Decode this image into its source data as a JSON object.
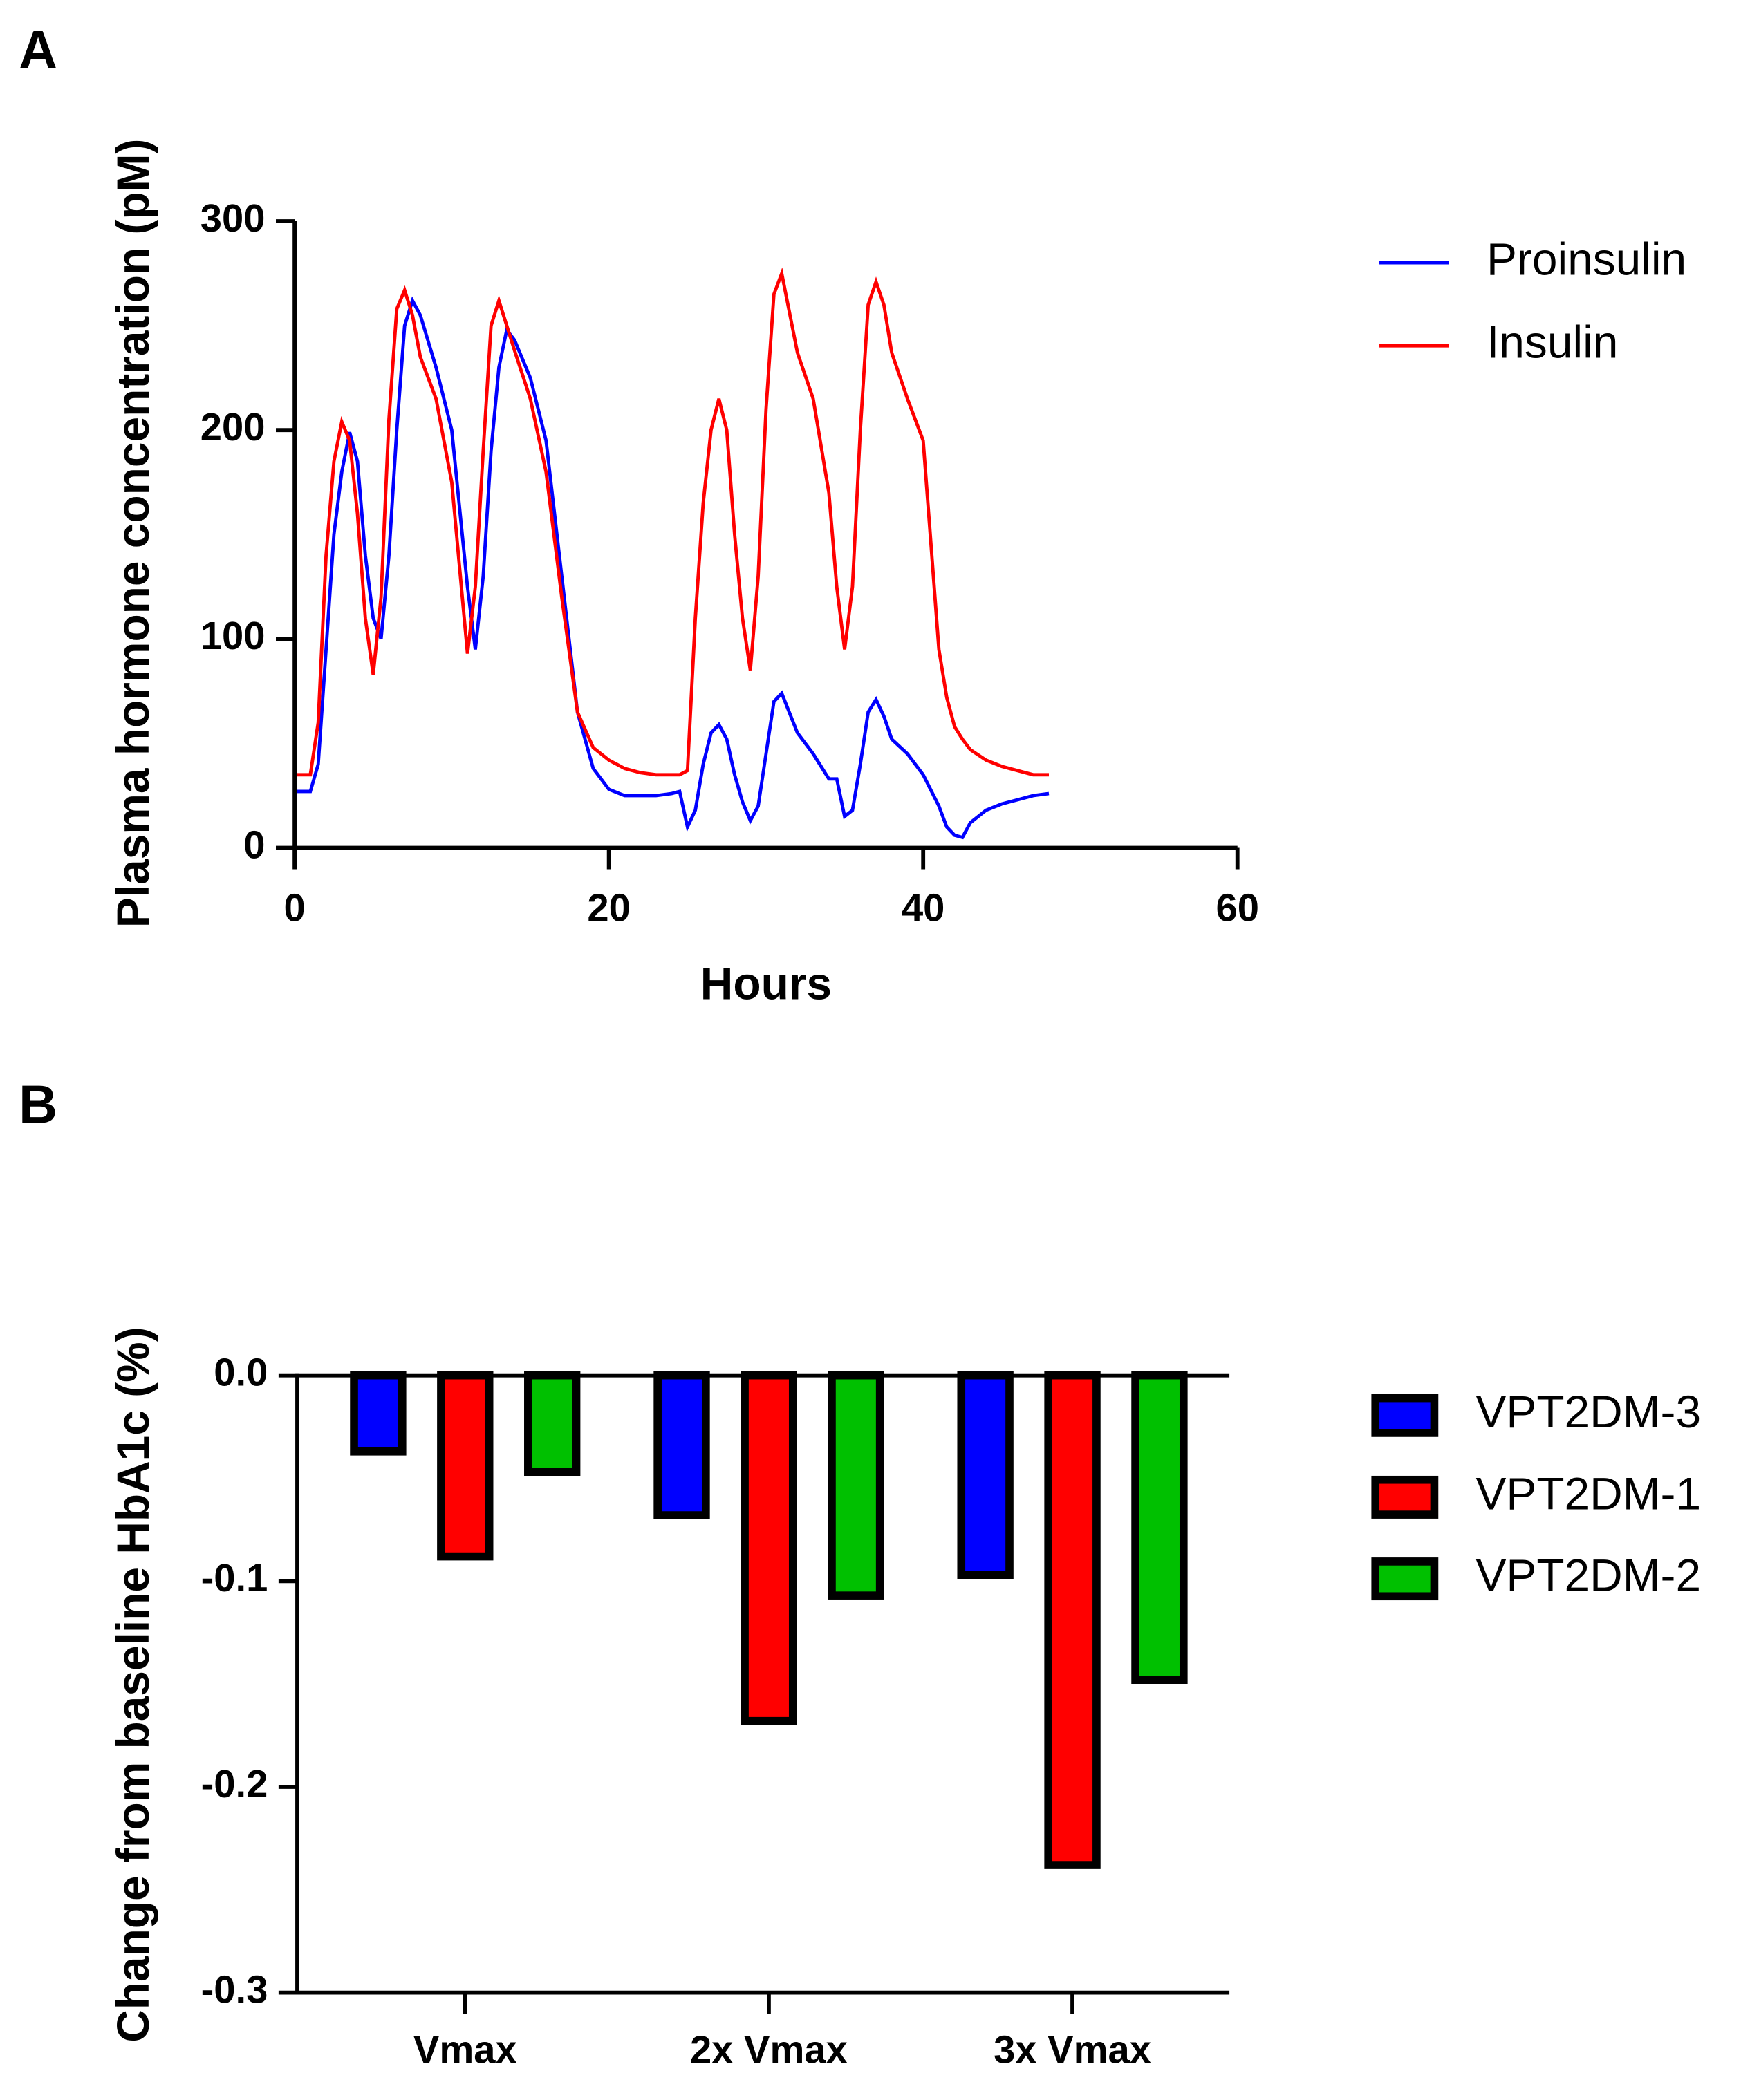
{
  "chart_data": [
    {
      "type": "line",
      "panel": "A",
      "x_label": "Hours",
      "y_label": "Plasma hormone concentration (pM)",
      "xlim": [
        0,
        60
      ],
      "xticks": [
        0,
        20,
        40,
        60
      ],
      "ylim": [
        0,
        300
      ],
      "yticks": [
        0,
        100,
        200,
        300
      ],
      "x": [
        0,
        1,
        1.5,
        2,
        2.5,
        3,
        3.5,
        4,
        4.5,
        5,
        5.5,
        6,
        6.5,
        7,
        7.5,
        8,
        9,
        10,
        11,
        11.5,
        12,
        12.5,
        13,
        13.5,
        14,
        15,
        16,
        17,
        18,
        19,
        20,
        21,
        22,
        23,
        24,
        24.5,
        25,
        25.5,
        26,
        26.5,
        27,
        27.5,
        28,
        28.5,
        29,
        29.5,
        30,
        30.5,
        31,
        32,
        33,
        34,
        34.5,
        35,
        35.5,
        36,
        36.5,
        37,
        37.5,
        38,
        39,
        40,
        41,
        41.5,
        42,
        42.5,
        43,
        44,
        45,
        46,
        47,
        48
      ],
      "series": [
        {
          "name": "Proinsulin",
          "color": "#0000ff",
          "values": [
            27,
            27,
            40,
            95,
            150,
            180,
            199,
            185,
            140,
            110,
            100,
            140,
            200,
            250,
            262,
            255,
            230,
            200,
            125,
            95,
            130,
            190,
            230,
            248,
            243,
            225,
            195,
            130,
            65,
            38,
            28,
            25,
            25,
            25,
            26,
            27,
            10,
            18,
            40,
            55,
            59,
            52,
            35,
            22,
            13,
            20,
            45,
            70,
            74,
            55,
            45,
            33,
            33,
            15,
            18,
            40,
            65,
            71,
            63,
            52,
            45,
            35,
            20,
            10,
            6,
            5,
            12,
            18,
            21,
            23,
            25,
            26
          ]
        },
        {
          "name": "Insulin",
          "color": "#ff0000",
          "values": [
            35,
            35,
            60,
            140,
            185,
            204,
            195,
            160,
            110,
            83,
            120,
            205,
            258,
            267,
            255,
            235,
            215,
            175,
            93,
            125,
            190,
            250,
            262,
            250,
            238,
            215,
            180,
            120,
            65,
            48,
            42,
            38,
            36,
            35,
            35,
            35,
            37,
            110,
            165,
            200,
            215,
            200,
            150,
            110,
            85,
            130,
            210,
            265,
            275,
            237,
            215,
            170,
            125,
            95,
            125,
            200,
            260,
            271,
            260,
            237,
            215,
            195,
            95,
            72,
            58,
            52,
            47,
            42,
            39,
            37,
            35,
            35
          ]
        }
      ]
    },
    {
      "type": "bar",
      "panel": "B",
      "y_label": "Change from baseline HbA1c (%)",
      "categories": [
        "Vmax",
        "2x Vmax",
        "3x Vmax"
      ],
      "ylim": [
        -0.3,
        0
      ],
      "yticks": [
        {
          "value": 0,
          "label": "0.0"
        },
        -0.1,
        -0.2,
        -0.3
      ],
      "series": [
        {
          "name": "VPT2DM-3",
          "color": "#0000ff",
          "values": [
            -0.037,
            -0.068,
            -0.097
          ]
        },
        {
          "name": "VPT2DM-1",
          "color": "#ff0000",
          "values": [
            -0.088,
            -0.168,
            -0.238
          ]
        },
        {
          "name": "VPT2DM-2",
          "color": "#00c000",
          "values": [
            -0.047,
            -0.107,
            -0.148
          ]
        }
      ]
    }
  ]
}
